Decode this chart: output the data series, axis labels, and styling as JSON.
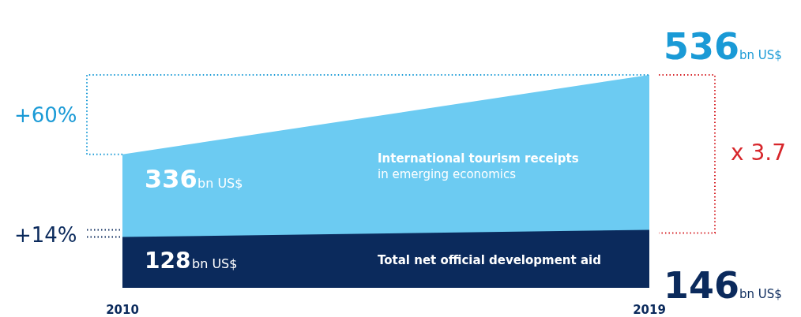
{
  "chart_data": {
    "type": "area",
    "x": [
      2010,
      2019
    ],
    "xlim": [
      2010,
      2019
    ],
    "xticks": [
      2010,
      2019
    ],
    "ylim": [
      0,
      536
    ],
    "tick_labels": "x",
    "series": [
      {
        "name": "International tourism receipts in emerging economics",
        "color": "#6ccbf2",
        "values": [
          336,
          536
        ],
        "value_labels": [
          "336",
          "536"
        ]
      },
      {
        "name": "Total net official development aid",
        "color": "#0b2a5c",
        "values": [
          128,
          146
        ],
        "value_labels": [
          "128",
          "146"
        ]
      }
    ],
    "annotations": [
      "+60%",
      "+14%",
      "x 3.7",
      "bn US$",
      "bn US$",
      "bn US$",
      "bn US$"
    ]
  }
}
